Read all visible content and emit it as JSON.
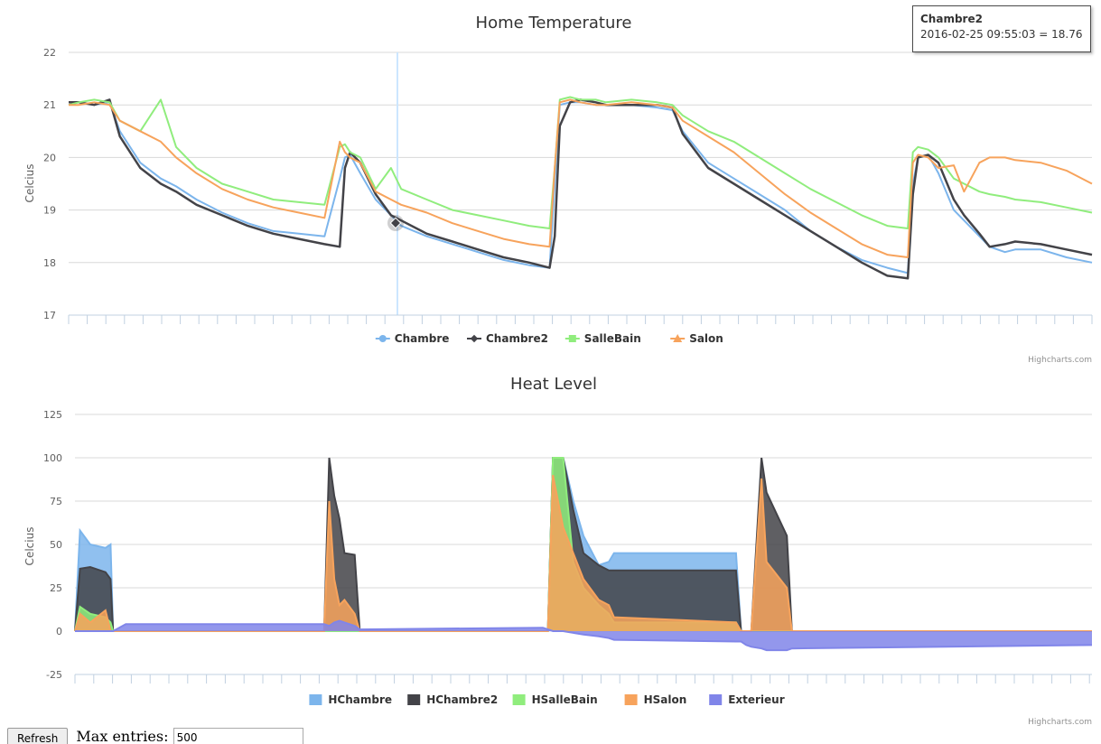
{
  "tooltip": {
    "series": "Chambre2",
    "text": "2016-02-25 09:55:03 = 18.76"
  },
  "controls": {
    "refresh_label": "Refresh",
    "max_label": "Max entries:",
    "max_value": "500"
  },
  "chart_data": [
    {
      "type": "line",
      "title": "Home Temperature",
      "ylabel": "Celcius",
      "ylim": [
        17,
        22
      ],
      "yticks": [
        17,
        18,
        19,
        20,
        21,
        22
      ],
      "grid": true,
      "legend": "bottom-center",
      "credits": "Highcharts.com",
      "x": [
        0,
        2,
        5,
        8,
        10,
        14,
        18,
        21,
        25,
        30,
        35,
        40,
        45,
        50,
        53,
        54,
        55,
        57,
        60,
        63,
        65,
        70,
        75,
        80,
        85,
        90,
        94,
        95,
        96,
        98,
        100,
        103,
        105,
        110,
        115,
        118,
        120,
        125,
        130,
        135,
        140,
        145,
        150,
        155,
        160,
        164,
        165,
        166,
        168,
        170,
        173,
        175,
        178,
        180,
        183,
        185,
        190,
        195,
        200
      ],
      "series": [
        {
          "name": "Chambre",
          "color": "#7cb5ec",
          "marker": "circle",
          "values": [
            21.0,
            21.05,
            21.0,
            21.05,
            20.5,
            19.9,
            19.6,
            19.45,
            19.2,
            18.95,
            18.75,
            18.6,
            18.55,
            18.5,
            19.6,
            20.0,
            20.05,
            19.7,
            19.2,
            18.9,
            18.7,
            18.5,
            18.35,
            18.2,
            18.05,
            17.95,
            17.9,
            19.5,
            21.0,
            21.05,
            21.05,
            21.0,
            21.0,
            21.0,
            20.95,
            20.9,
            20.5,
            19.9,
            19.6,
            19.3,
            19.0,
            18.6,
            18.3,
            18.05,
            17.9,
            17.8,
            19.5,
            20.0,
            20.05,
            19.7,
            19.0,
            18.8,
            18.5,
            18.3,
            18.2,
            18.25,
            18.25,
            18.1,
            18.0
          ]
        },
        {
          "name": "Chambre2",
          "color": "#434348",
          "marker": "diamond",
          "values": [
            21.05,
            21.05,
            21.0,
            21.1,
            20.4,
            19.8,
            19.5,
            19.35,
            19.1,
            18.9,
            18.7,
            18.55,
            18.45,
            18.35,
            18.3,
            19.8,
            20.1,
            19.9,
            19.3,
            18.9,
            18.8,
            18.55,
            18.4,
            18.25,
            18.1,
            18.0,
            17.9,
            18.5,
            20.6,
            21.05,
            21.1,
            21.05,
            21.0,
            21.0,
            21.0,
            20.95,
            20.45,
            19.8,
            19.5,
            19.2,
            18.9,
            18.6,
            18.3,
            18.0,
            17.75,
            17.7,
            19.3,
            20.0,
            20.05,
            19.9,
            19.2,
            18.9,
            18.55,
            18.3,
            18.35,
            18.4,
            18.35,
            18.25,
            18.15
          ]
        },
        {
          "name": "SalleBain",
          "color": "#90ed7d",
          "marker": "square",
          "values": [
            21.0,
            21.05,
            21.1,
            21.05,
            20.7,
            20.5,
            21.1,
            20.2,
            19.8,
            19.5,
            19.35,
            19.2,
            19.15,
            19.1,
            20.2,
            20.25,
            20.1,
            20.0,
            19.4,
            19.8,
            19.4,
            19.2,
            19.0,
            18.9,
            18.8,
            18.7,
            18.65,
            19.8,
            21.1,
            21.15,
            21.1,
            21.1,
            21.05,
            21.1,
            21.05,
            21.0,
            20.8,
            20.5,
            20.3,
            20.0,
            19.7,
            19.4,
            19.15,
            18.9,
            18.7,
            18.65,
            20.1,
            20.2,
            20.15,
            20.0,
            19.6,
            19.5,
            19.35,
            19.3,
            19.25,
            19.2,
            19.15,
            19.05,
            18.95
          ]
        },
        {
          "name": "Salon",
          "color": "#f7a35c",
          "marker": "triangle",
          "values": [
            21.0,
            21.0,
            21.05,
            21.0,
            20.7,
            20.5,
            20.3,
            20.0,
            19.7,
            19.4,
            19.2,
            19.05,
            18.95,
            18.85,
            20.3,
            20.1,
            20.0,
            19.9,
            19.35,
            19.2,
            19.1,
            18.95,
            18.75,
            18.6,
            18.45,
            18.35,
            18.3,
            19.8,
            21.05,
            21.1,
            21.05,
            21.0,
            21.0,
            21.05,
            21.0,
            20.95,
            20.7,
            20.4,
            20.1,
            19.7,
            19.3,
            18.95,
            18.65,
            18.35,
            18.15,
            18.1,
            19.9,
            20.05,
            20.0,
            19.8,
            19.85,
            19.35,
            19.9,
            20.0,
            20.0,
            19.95,
            19.9,
            19.75,
            19.5
          ]
        }
      ]
    },
    {
      "type": "area",
      "title": "Heat Level",
      "ylabel": "Celcius",
      "ylim": [
        -25,
        125
      ],
      "yticks": [
        -25,
        0,
        25,
        50,
        75,
        100,
        125
      ],
      "grid": true,
      "legend": "bottom-center",
      "credits": "Highcharts.com",
      "x": [
        0,
        1,
        3,
        6,
        7,
        7.5,
        10,
        49,
        50,
        51,
        52,
        53,
        55,
        56,
        92,
        93,
        94,
        96,
        98,
        100,
        103,
        105,
        106,
        130,
        131,
        132,
        133,
        135,
        136,
        140,
        141,
        200
      ],
      "series": [
        {
          "name": "HChambre",
          "color": "#7cb5ec",
          "values": [
            0,
            58,
            50,
            48,
            50,
            0,
            0,
            0,
            0,
            0,
            0,
            0,
            0,
            0,
            0,
            0,
            100,
            100,
            75,
            55,
            38,
            40,
            45,
            45,
            0,
            0,
            0,
            0,
            0,
            0,
            0,
            0
          ]
        },
        {
          "name": "HChambre2",
          "color": "#434348",
          "values": [
            0,
            36,
            37,
            34,
            30,
            0,
            0,
            0,
            100,
            78,
            65,
            45,
            44,
            0,
            0,
            0,
            100,
            100,
            70,
            45,
            38,
            35,
            35,
            35,
            0,
            0,
            0,
            100,
            80,
            55,
            0,
            0
          ]
        },
        {
          "name": "HSalleBain",
          "color": "#90ed7d",
          "values": [
            0,
            14,
            10,
            8,
            5,
            0,
            0,
            0,
            0,
            0,
            0,
            0,
            0,
            0,
            0,
            0,
            100,
            100,
            40,
            25,
            15,
            10,
            5,
            5,
            0,
            0,
            0,
            0,
            0,
            0,
            0,
            0
          ]
        },
        {
          "name": "HSalon",
          "color": "#f7a35c",
          "values": [
            0,
            10,
            5,
            12,
            0,
            0,
            0,
            0,
            75,
            30,
            15,
            18,
            10,
            0,
            0,
            0,
            90,
            60,
            45,
            30,
            18,
            15,
            8,
            5,
            0,
            0,
            0,
            88,
            40,
            25,
            0,
            0
          ]
        },
        {
          "name": "Exterieur",
          "color": "#8085e9",
          "values": [
            0,
            0,
            0,
            0,
            0,
            0,
            4,
            4,
            3,
            5,
            6,
            5,
            3,
            1,
            2,
            1,
            0,
            0,
            -1,
            -2,
            -3,
            -4,
            -5,
            -6,
            -6,
            -8,
            -9,
            -10,
            -11,
            -11,
            -10,
            -8
          ]
        }
      ]
    }
  ]
}
